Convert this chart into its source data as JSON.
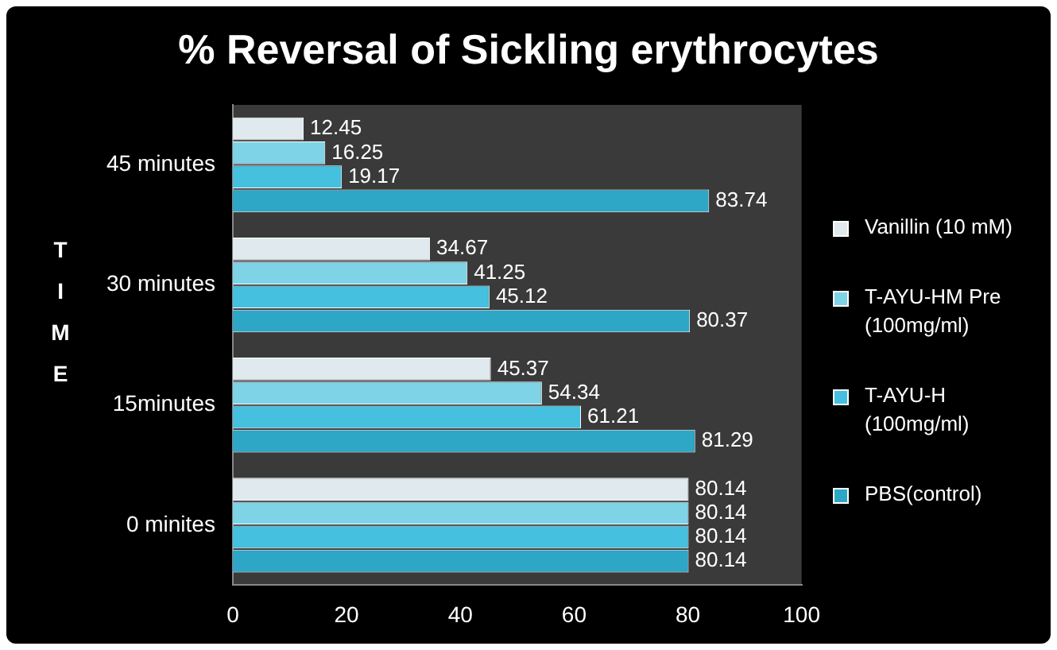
{
  "chart_data": {
    "type": "bar",
    "orientation": "horizontal",
    "title": "%  Reversal of Sickling erythrocytes",
    "ylabel": "TIME",
    "categories": [
      "45 minutes",
      "30 minutes",
      "15minutes",
      "0 minites"
    ],
    "series": [
      {
        "name": "Vanillin  (10 mM)",
        "color": "#dfe9ee",
        "values": [
          12.45,
          34.67,
          45.37,
          80.14
        ]
      },
      {
        "name": "T-AYU-HM Pre (100mg/ml)",
        "color": "#7fd3e6",
        "values": [
          16.25,
          41.25,
          54.34,
          80.14
        ]
      },
      {
        "name": "T-AYU-H (100mg/ml)",
        "color": "#45c0de",
        "values": [
          19.17,
          45.12,
          61.21,
          80.14
        ]
      },
      {
        "name": "PBS(control)",
        "color": "#2ea6c6",
        "values": [
          83.74,
          80.37,
          81.29,
          80.14
        ]
      }
    ],
    "xlim": [
      0,
      100
    ],
    "xticks": [
      0,
      20,
      40,
      60,
      80,
      100
    ],
    "grid": false,
    "legend": "right",
    "data_labels": true
  }
}
